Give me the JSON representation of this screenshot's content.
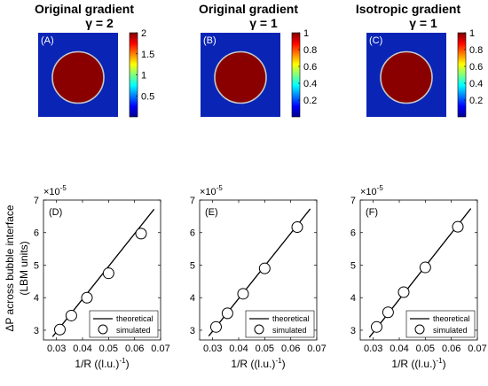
{
  "figure": {
    "heatmaps": [
      {
        "title_line1": "Original gradient",
        "title_line2": "γ = 2",
        "panel_label": "(A)",
        "colorbar_ticks": [
          "2",
          "1.5",
          "1",
          "0.5"
        ],
        "colorbar_tick_values": [
          2,
          1.5,
          1,
          0.5
        ],
        "colorbar_range": [
          0,
          2
        ]
      },
      {
        "title_line1": "Original gradient",
        "title_line2": "γ = 1",
        "panel_label": "(B)",
        "colorbar_ticks": [
          "1",
          "0.8",
          "0.6",
          "0.4",
          "0.2"
        ],
        "colorbar_tick_values": [
          1,
          0.8,
          0.6,
          0.4,
          0.2
        ],
        "colorbar_range": [
          0,
          1
        ]
      },
      {
        "title_line1": "Isotropic gradient",
        "title_line2": "γ = 1",
        "panel_label": "(C)",
        "colorbar_ticks": [
          "1",
          "0.8",
          "0.6",
          "0.4",
          "0.2"
        ],
        "colorbar_tick_values": [
          1,
          0.8,
          0.6,
          0.4,
          0.2
        ],
        "colorbar_range": [
          0,
          1
        ]
      }
    ],
    "plot_labels": {
      "ylabel_line1": "ΔP across bubble interface",
      "ylabel_line2": "(LBM units)",
      "xlabel": "1/R ((l.u.)",
      "xlabel_exp": "-1",
      "xlabel_close": ")",
      "exponent_base": "×10",
      "exponent_power": "-5",
      "legend_theoretical": "theoretical",
      "legend_simulated": "simulated",
      "xticks": [
        "0.03",
        "0.04",
        "0.05",
        "0.06",
        "0.07"
      ],
      "yticks": [
        "7",
        "6",
        "5",
        "4",
        "3"
      ]
    },
    "colors": {
      "heatmap_background": "#0a24b5",
      "bubble": "#8a0000",
      "interface": "#c8c8c8",
      "line": "#000000",
      "marker_fill": "#ffffff"
    }
  },
  "chart_data": [
    {
      "type": "scatter",
      "panel": "(D)",
      "xlabel": "1/R ((l.u.)^-1)",
      "ylabel": "ΔP across bubble interface (LBM units)",
      "y_scale": "×10^-5",
      "xlim": [
        0.025,
        0.07
      ],
      "ylim": [
        2.7,
        7
      ],
      "legend": "bottom-right",
      "series": [
        {
          "name": "theoretical",
          "kind": "line",
          "x": [
            0.0285,
            0.0675
          ],
          "y": [
            2.8,
            6.72
          ]
        },
        {
          "name": "simulated",
          "kind": "markers",
          "x": [
            0.0313,
            0.0357,
            0.0417,
            0.05,
            0.0625
          ],
          "y": [
            3.02,
            3.45,
            4.0,
            4.75,
            5.97
          ]
        }
      ]
    },
    {
      "type": "scatter",
      "panel": "(E)",
      "xlabel": "1/R ((l.u.)^-1)",
      "y_scale": "×10^-5",
      "xlim": [
        0.025,
        0.07
      ],
      "ylim": [
        2.7,
        7
      ],
      "legend": "bottom-right",
      "series": [
        {
          "name": "theoretical",
          "kind": "line",
          "x": [
            0.0285,
            0.0675
          ],
          "y": [
            2.82,
            6.73
          ]
        },
        {
          "name": "simulated",
          "kind": "markers",
          "x": [
            0.0313,
            0.0357,
            0.0417,
            0.05,
            0.0625
          ],
          "y": [
            3.1,
            3.52,
            4.12,
            4.9,
            6.17
          ]
        }
      ]
    },
    {
      "type": "scatter",
      "panel": "(F)",
      "xlabel": "1/R ((l.u.)^-1)",
      "y_scale": "×10^-5",
      "xlim": [
        0.025,
        0.07
      ],
      "ylim": [
        2.7,
        7
      ],
      "legend": "bottom-right",
      "series": [
        {
          "name": "theoretical",
          "kind": "line",
          "x": [
            0.0285,
            0.0675
          ],
          "y": [
            2.78,
            6.74
          ]
        },
        {
          "name": "simulated",
          "kind": "markers",
          "x": [
            0.0313,
            0.0357,
            0.0417,
            0.05,
            0.0625
          ],
          "y": [
            3.1,
            3.55,
            4.17,
            4.93,
            6.18
          ]
        }
      ]
    }
  ]
}
